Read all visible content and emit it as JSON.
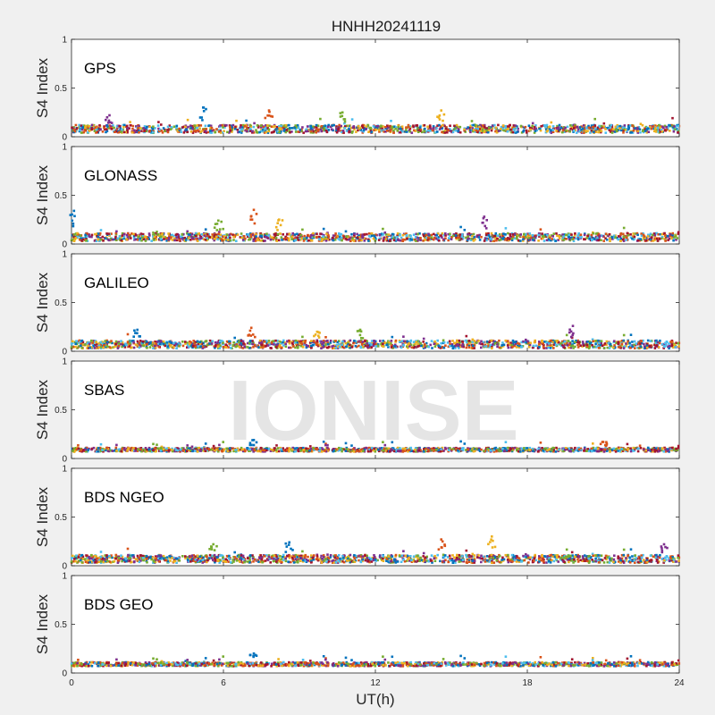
{
  "chart_data": {
    "type": "scatter",
    "title": "HNHH20241119",
    "xlabel": "UT(h)",
    "xlim": [
      0,
      24
    ],
    "xticks": [
      "0",
      "6",
      "12",
      "18",
      "24"
    ],
    "ylim": [
      0,
      1
    ],
    "yticks": [
      "0",
      "0.5",
      "1"
    ],
    "ylabel": "S4 Index",
    "watermark": "IONISE",
    "colors": [
      "#0072bd",
      "#d95319",
      "#edb120",
      "#7e2f8e",
      "#77ac30",
      "#4dbeee",
      "#a2142f"
    ],
    "panels": [
      {
        "label": "GPS",
        "baseline": 0.08,
        "spread": 0.04,
        "spikes": [
          [
            5.2,
            0.3
          ],
          [
            7.8,
            0.27
          ],
          [
            14.6,
            0.27
          ],
          [
            1.5,
            0.22
          ],
          [
            10.7,
            0.25
          ]
        ]
      },
      {
        "label": "GLONASS",
        "baseline": 0.07,
        "spread": 0.04,
        "spikes": [
          [
            0.1,
            0.34
          ],
          [
            7.2,
            0.35
          ],
          [
            8.2,
            0.25
          ],
          [
            16.3,
            0.28
          ],
          [
            5.8,
            0.24
          ]
        ]
      },
      {
        "label": "GALILEO",
        "baseline": 0.07,
        "spread": 0.04,
        "spikes": [
          [
            2.6,
            0.22
          ],
          [
            7.1,
            0.24
          ],
          [
            9.7,
            0.2
          ],
          [
            19.8,
            0.26
          ],
          [
            11.4,
            0.22
          ]
        ]
      },
      {
        "label": "SBAS",
        "baseline": 0.09,
        "spread": 0.02,
        "spikes": [
          [
            7.2,
            0.19
          ],
          [
            21.0,
            0.17
          ]
        ]
      },
      {
        "label": "BDS NGEO",
        "baseline": 0.07,
        "spread": 0.04,
        "spikes": [
          [
            8.6,
            0.24
          ],
          [
            14.6,
            0.27
          ],
          [
            16.6,
            0.3
          ],
          [
            23.4,
            0.22
          ],
          [
            5.6,
            0.22
          ]
        ]
      },
      {
        "label": "BDS GEO",
        "baseline": 0.09,
        "spread": 0.02,
        "spikes": [
          [
            7.2,
            0.2
          ]
        ]
      }
    ]
  }
}
